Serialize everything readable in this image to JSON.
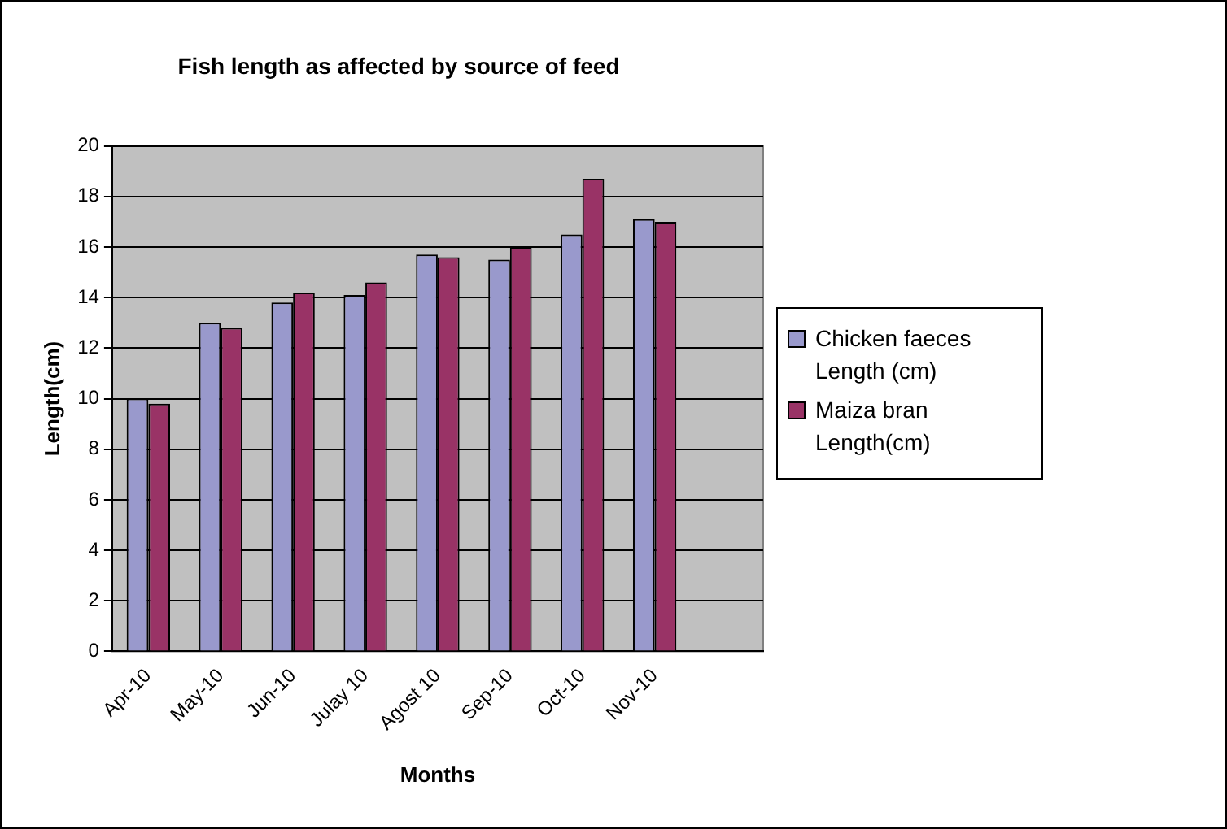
{
  "chart_data": {
    "type": "bar",
    "title": "Fish length as affected by source of feed",
    "xlabel": "Months",
    "ylabel": "Length(cm)",
    "categories": [
      "Apr-10",
      "May-10",
      "Jun-10",
      "Julay 10",
      "Agost 10",
      "Sep-10",
      "Oct-10",
      "Nov-10",
      null
    ],
    "series": [
      {
        "name": "Chicken faeces Length (cm)",
        "color": "#9999cc",
        "values": [
          10.0,
          13.0,
          13.8,
          14.1,
          15.7,
          15.5,
          16.5,
          17.1,
          null
        ]
      },
      {
        "name": "Maiza bran Length(cm)",
        "color": "#993366",
        "values": [
          9.8,
          12.8,
          14.2,
          14.6,
          15.6,
          16.0,
          18.7,
          17.0,
          null
        ]
      }
    ],
    "ylim": [
      0,
      20
    ],
    "yticks": [
      0,
      2,
      4,
      6,
      8,
      10,
      12,
      14,
      16,
      18,
      20
    ],
    "grid": "y",
    "legend": "right"
  }
}
